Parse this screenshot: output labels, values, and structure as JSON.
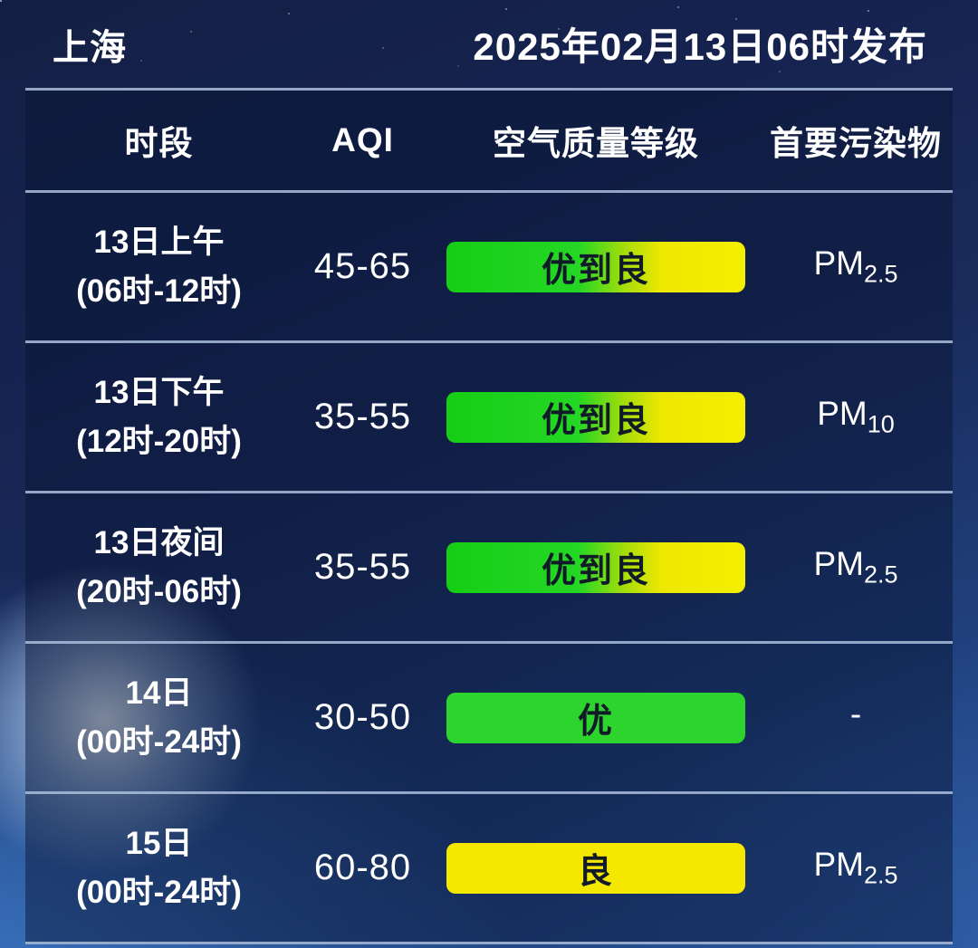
{
  "header": {
    "city": "上海",
    "published": "2025年02月13日06时发布"
  },
  "table": {
    "columns": [
      "时段",
      "AQI",
      "空气质量等级",
      "首要污染物"
    ],
    "rows": [
      {
        "period": [
          "13日上午",
          "(06时-12时)"
        ],
        "aqi": "45-65",
        "level": "优到良",
        "level_type": "excellent-to-good",
        "pollutant": {
          "base": "PM",
          "sub": "2.5"
        }
      },
      {
        "period": [
          "13日下午",
          "(12时-20时)"
        ],
        "aqi": "35-55",
        "level": "优到良",
        "level_type": "excellent-to-good",
        "pollutant": {
          "base": "PM",
          "sub": "10"
        }
      },
      {
        "period": [
          "13日夜间",
          "(20时-06时)"
        ],
        "aqi": "35-55",
        "level": "优到良",
        "level_type": "excellent-to-good",
        "pollutant": {
          "base": "PM",
          "sub": "2.5"
        }
      },
      {
        "period": [
          "14日",
          "(00时-24时)"
        ],
        "aqi": "30-50",
        "level": "优",
        "level_type": "excellent",
        "pollutant": {
          "base": "-",
          "sub": ""
        }
      },
      {
        "period": [
          "15日",
          "(00时-24时)"
        ],
        "aqi": "60-80",
        "level": "良",
        "level_type": "good",
        "pollutant": {
          "base": "PM",
          "sub": "2.5"
        }
      }
    ]
  },
  "colors": {
    "level_excellent": "#2dd42d",
    "level_good": "#f4e800",
    "level_gradient_start": "#16ce16",
    "level_gradient_end": "#f4ee00",
    "badge_text": "#101a28",
    "divider": "#acbedc",
    "text": "#ffffff"
  }
}
